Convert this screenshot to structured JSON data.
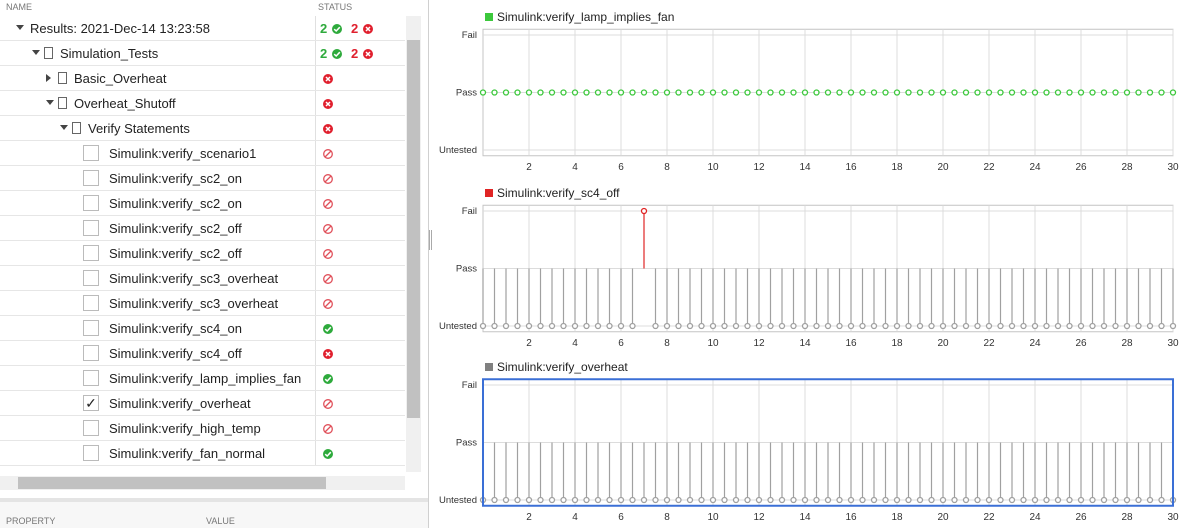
{
  "tree": {
    "columns": [
      "NAME",
      "STATUS"
    ],
    "rows": [
      {
        "label": "Results: 2021-Dec-14 13:23:58",
        "level": 0,
        "expanded": true,
        "pass_count": "2",
        "fail_count": "2"
      },
      {
        "label": "Simulation_Tests",
        "level": 1,
        "expanded": true,
        "pass_count": "2",
        "fail_count": "2"
      },
      {
        "label": "Basic_Overheat",
        "level": 2,
        "expanded": false,
        "status": "fail"
      },
      {
        "label": "Overheat_Shutoff",
        "level": 2,
        "expanded": true,
        "status": "fail"
      },
      {
        "label": "Verify Statements",
        "level": 3,
        "expanded": true,
        "status": "fail"
      },
      {
        "label": "Simulink:verify_scenario1",
        "level": 4,
        "checked": false,
        "status": "untested"
      },
      {
        "label": "Simulink:verify_sc2_on",
        "level": 4,
        "checked": false,
        "status": "untested"
      },
      {
        "label": "Simulink:verify_sc2_on",
        "level": 4,
        "checked": false,
        "status": "untested"
      },
      {
        "label": "Simulink:verify_sc2_off",
        "level": 4,
        "checked": false,
        "status": "untested"
      },
      {
        "label": "Simulink:verify_sc2_off",
        "level": 4,
        "checked": false,
        "status": "untested"
      },
      {
        "label": "Simulink:verify_sc3_overheat",
        "level": 4,
        "checked": false,
        "status": "untested"
      },
      {
        "label": "Simulink:verify_sc3_overheat",
        "level": 4,
        "checked": false,
        "status": "untested"
      },
      {
        "label": "Simulink:verify_sc4_on",
        "level": 4,
        "checked": false,
        "status": "pass"
      },
      {
        "label": "Simulink:verify_sc4_off",
        "level": 4,
        "checked": false,
        "status": "fail"
      },
      {
        "label": "Simulink:verify_lamp_implies_fan",
        "level": 4,
        "checked": false,
        "status": "pass"
      },
      {
        "label": "Simulink:verify_overheat",
        "level": 4,
        "checked": true,
        "status": "untested"
      },
      {
        "label": "Simulink:verify_high_temp",
        "level": 4,
        "checked": false,
        "status": "untested"
      },
      {
        "label": "Simulink:verify_fan_normal",
        "level": 4,
        "checked": false,
        "status": "pass"
      }
    ]
  },
  "properties": {
    "columns": [
      "PROPERTY",
      "VALUE"
    ]
  },
  "chart_data": [
    {
      "type": "stem",
      "series": [
        {
          "name": "Simulink:verify_lamp_implies_fan",
          "color": "#3cc83c",
          "values": [
            1,
            1,
            1,
            1,
            1,
            1,
            1,
            1,
            1,
            1,
            1,
            1,
            1,
            1,
            1,
            1,
            1,
            1,
            1,
            1,
            1,
            1,
            1,
            1,
            1,
            1,
            1,
            1,
            1,
            1,
            1,
            1,
            1,
            1,
            1,
            1,
            1,
            1,
            1,
            1,
            1,
            1,
            1,
            1,
            1,
            1,
            1,
            1,
            1,
            1,
            1,
            1,
            1,
            1,
            1,
            1,
            1,
            1,
            1,
            1,
            1
          ]
        }
      ],
      "untested_color": "#a0a0a0",
      "grid": true,
      "selected": false,
      "x": [
        0,
        0.5,
        1,
        1.5,
        2,
        2.5,
        3,
        3.5,
        4,
        4.5,
        5,
        5.5,
        6,
        6.5,
        7,
        7.5,
        8,
        8.5,
        9,
        9.5,
        10,
        10.5,
        11,
        11.5,
        12,
        12.5,
        13,
        13.5,
        14,
        14.5,
        15,
        15.5,
        16,
        16.5,
        17,
        17.5,
        18,
        18.5,
        19,
        19.5,
        20,
        20.5,
        21,
        21.5,
        22,
        22.5,
        23,
        23.5,
        24,
        24.5,
        25,
        25.5,
        26,
        26.5,
        27,
        27.5,
        28,
        28.5,
        29,
        29.5,
        30
      ],
      "xlim": [
        0,
        30
      ],
      "xticks": [
        2,
        4,
        6,
        8,
        10,
        12,
        14,
        16,
        18,
        20,
        22,
        24,
        26,
        28,
        30
      ],
      "ylim": [
        -0.1,
        2.1
      ],
      "yticks": [
        {
          "value": 0,
          "label": "Untested"
        },
        {
          "value": 1,
          "label": "Pass"
        },
        {
          "value": 2,
          "label": "Fail"
        }
      ]
    },
    {
      "type": "stem",
      "series": [
        {
          "name": "Simulink:verify_sc4_off",
          "color": "#e02424",
          "values": [
            0,
            0,
            0,
            0,
            0,
            0,
            0,
            0,
            0,
            0,
            0,
            0,
            0,
            0,
            2,
            0,
            0,
            0,
            0,
            0,
            0,
            0,
            0,
            0,
            0,
            0,
            0,
            0,
            0,
            0,
            0,
            0,
            0,
            0,
            0,
            0,
            0,
            0,
            0,
            0,
            0,
            0,
            0,
            0,
            0,
            0,
            0,
            0,
            0,
            0,
            0,
            0,
            0,
            0,
            0,
            0,
            0,
            0,
            0,
            0,
            0
          ]
        }
      ],
      "untested_color": "#a0a0a0",
      "grid": true,
      "selected": false,
      "x": [
        0,
        0.5,
        1,
        1.5,
        2,
        2.5,
        3,
        3.5,
        4,
        4.5,
        5,
        5.5,
        6,
        6.5,
        7,
        7.5,
        8,
        8.5,
        9,
        9.5,
        10,
        10.5,
        11,
        11.5,
        12,
        12.5,
        13,
        13.5,
        14,
        14.5,
        15,
        15.5,
        16,
        16.5,
        17,
        17.5,
        18,
        18.5,
        19,
        19.5,
        20,
        20.5,
        21,
        21.5,
        22,
        22.5,
        23,
        23.5,
        24,
        24.5,
        25,
        25.5,
        26,
        26.5,
        27,
        27.5,
        28,
        28.5,
        29,
        29.5,
        30
      ],
      "xlim": [
        0,
        30
      ],
      "xticks": [
        2,
        4,
        6,
        8,
        10,
        12,
        14,
        16,
        18,
        20,
        22,
        24,
        26,
        28,
        30
      ],
      "ylim": [
        -0.1,
        2.1
      ],
      "yticks": [
        {
          "value": 0,
          "label": "Untested"
        },
        {
          "value": 1,
          "label": "Pass"
        },
        {
          "value": 2,
          "label": "Fail"
        }
      ]
    },
    {
      "type": "stem",
      "series": [
        {
          "name": "Simulink:verify_overheat",
          "color": "#808080",
          "values": [
            0,
            0,
            0,
            0,
            0,
            0,
            0,
            0,
            0,
            0,
            0,
            0,
            0,
            0,
            0,
            0,
            0,
            0,
            0,
            0,
            0,
            0,
            0,
            0,
            0,
            0,
            0,
            0,
            0,
            0,
            0,
            0,
            0,
            0,
            0,
            0,
            0,
            0,
            0,
            0,
            0,
            0,
            0,
            0,
            0,
            0,
            0,
            0,
            0,
            0,
            0,
            0,
            0,
            0,
            0,
            0,
            0,
            0,
            0,
            0,
            0
          ]
        }
      ],
      "untested_color": "#a0a0a0",
      "grid": true,
      "selected": true,
      "x": [
        0,
        0.5,
        1,
        1.5,
        2,
        2.5,
        3,
        3.5,
        4,
        4.5,
        5,
        5.5,
        6,
        6.5,
        7,
        7.5,
        8,
        8.5,
        9,
        9.5,
        10,
        10.5,
        11,
        11.5,
        12,
        12.5,
        13,
        13.5,
        14,
        14.5,
        15,
        15.5,
        16,
        16.5,
        17,
        17.5,
        18,
        18.5,
        19,
        19.5,
        20,
        20.5,
        21,
        21.5,
        22,
        22.5,
        23,
        23.5,
        24,
        24.5,
        25,
        25.5,
        26,
        26.5,
        27,
        27.5,
        28,
        28.5,
        29,
        29.5,
        30
      ],
      "xlim": [
        0,
        30
      ],
      "xticks": [
        2,
        4,
        6,
        8,
        10,
        12,
        14,
        16,
        18,
        20,
        22,
        24,
        26,
        28,
        30
      ],
      "ylim": [
        -0.1,
        2.1
      ],
      "yticks": [
        {
          "value": 0,
          "label": "Untested"
        },
        {
          "value": 1,
          "label": "Pass"
        },
        {
          "value": 2,
          "label": "Fail"
        }
      ]
    }
  ]
}
